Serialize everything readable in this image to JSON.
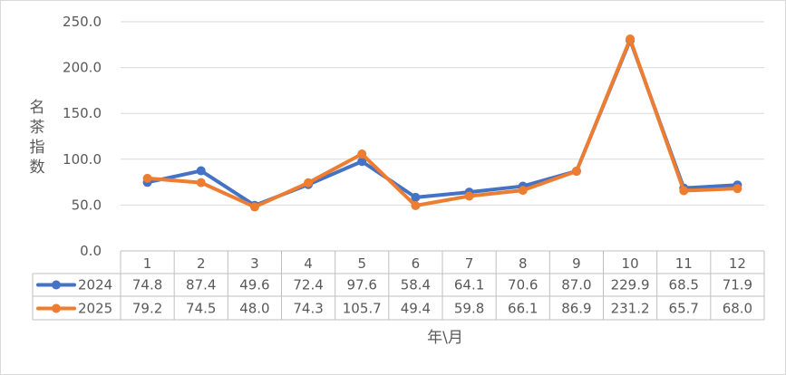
{
  "chart_data": {
    "type": "line",
    "categories": [
      "1",
      "2",
      "3",
      "4",
      "5",
      "6",
      "7",
      "8",
      "9",
      "10",
      "11",
      "12"
    ],
    "series": [
      {
        "name": "2024",
        "values": [
          74.8,
          87.4,
          49.6,
          72.4,
          97.6,
          58.4,
          64.1,
          70.6,
          87.0,
          229.9,
          68.5,
          71.9
        ],
        "labels": [
          "74.8",
          "87.4",
          "49.6",
          "72.4",
          "97.6",
          "58.4",
          "64.1",
          "70.6",
          "87.0",
          "229.9",
          "68.5",
          "71.9"
        ],
        "color": "#4472C4"
      },
      {
        "name": "2025",
        "values": [
          79.2,
          74.5,
          48.0,
          74.3,
          105.7,
          49.4,
          59.8,
          66.1,
          86.9,
          231.2,
          65.7,
          68.0
        ],
        "labels": [
          "79.2",
          "74.5",
          "48.0",
          "74.3",
          "105.7",
          "49.4",
          "59.8",
          "66.1",
          "86.9",
          "231.2",
          "65.7",
          "68.0"
        ],
        "color": "#ED7D31"
      }
    ],
    "y_ticks": [
      "0.0",
      "50.0",
      "100.0",
      "150.0",
      "200.0",
      "250.0"
    ],
    "ylim": [
      0,
      250
    ],
    "ylabel": "名茶指数",
    "xlabel": "年\\月",
    "grid": true,
    "legend": "data-table"
  }
}
